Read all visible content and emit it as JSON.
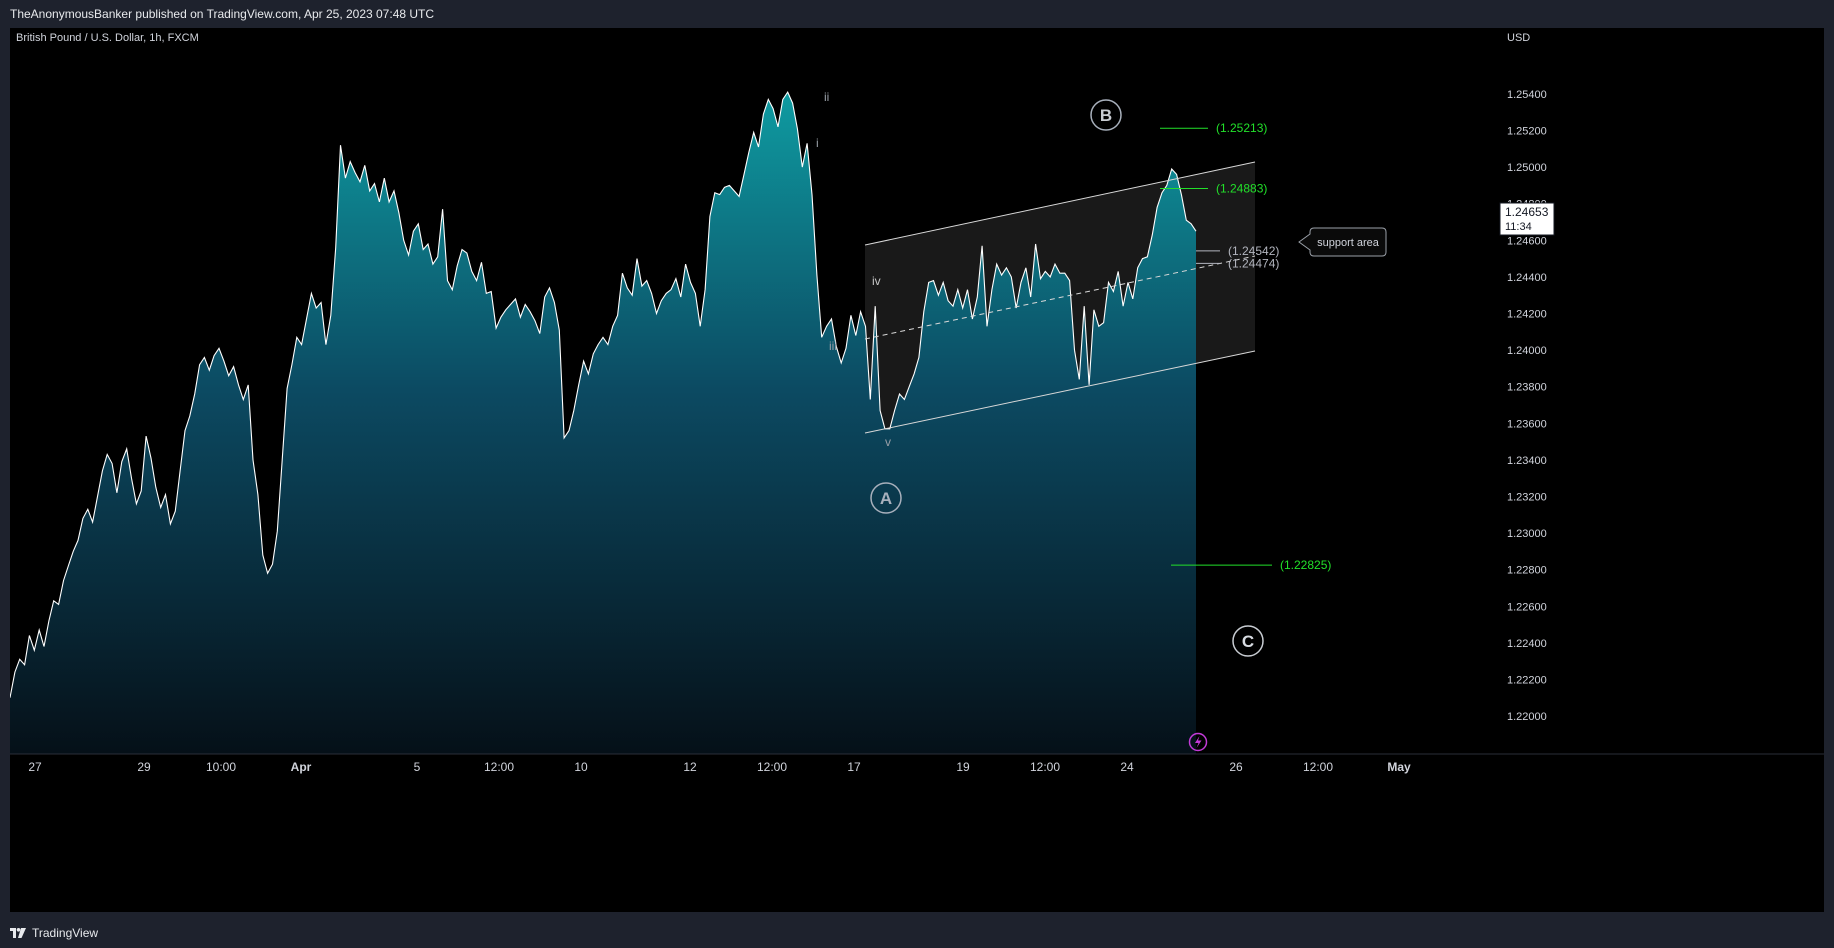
{
  "header": {
    "publisher_line": "TheAnonymousBanker published on TradingView.com, Apr 25, 2023 07:48 UTC"
  },
  "footer": {
    "brand": "TradingView"
  },
  "icons": {
    "brand_logo": "tradingview-logo-icon",
    "lightning": "lightning-icon"
  },
  "colors": {
    "background": "#000000",
    "line": "#ffffff",
    "area_top": "#0e9ba1",
    "area_bottom": "#051018",
    "target_green": "#22e02a",
    "level_gray": "#b2b5be",
    "channel_fill": "#1c1c1c",
    "lightning": "#c23ad7"
  },
  "chart_data": {
    "type": "area",
    "title": "British Pound / U.S. Dollar, 1h, FXCM",
    "currency_label": "USD",
    "x_tick_labels": [
      "27",
      "29",
      "10:00",
      "Apr",
      "5",
      "12:00",
      "10",
      "12",
      "12:00",
      "17",
      "19",
      "12:00",
      "24",
      "26",
      "12:00",
      "May"
    ],
    "y_tick_labels": [
      "1.25400",
      "1.25200",
      "1.25000",
      "1.24800",
      "1.24600",
      "1.24400",
      "1.24200",
      "1.24000",
      "1.23800",
      "1.23600",
      "1.23400",
      "1.23200",
      "1.23000",
      "1.22800",
      "1.22600",
      "1.22400",
      "1.22200",
      "1.22000"
    ],
    "ylim": [
      1.2188,
      1.2558
    ],
    "grid": false,
    "current_price": "1.24653",
    "countdown": "11:34",
    "series": [
      {
        "values": [
          1.221,
          1.2224,
          1.2231,
          1.2228,
          1.2244,
          1.2236,
          1.2247,
          1.2238,
          1.2252,
          1.2263,
          1.2261,
          1.2274,
          1.2282,
          1.229,
          1.2296,
          1.2308,
          1.2313,
          1.2306,
          1.232,
          1.2334,
          1.2343,
          1.2338,
          1.2322,
          1.2339,
          1.2346,
          1.233,
          1.2316,
          1.2323,
          1.2353,
          1.2341,
          1.2325,
          1.2314,
          1.2321,
          1.2305,
          1.2312,
          1.2334,
          1.2356,
          1.2364,
          1.2376,
          1.2392,
          1.2396,
          1.2389,
          1.2397,
          1.2401,
          1.2394,
          1.2386,
          1.2391,
          1.2381,
          1.2373,
          1.2381,
          1.234,
          1.2321,
          1.2288,
          1.2278,
          1.2283,
          1.2301,
          1.234,
          1.2379,
          1.2392,
          1.2407,
          1.2403,
          1.2417,
          1.2431,
          1.2423,
          1.2426,
          1.2403,
          1.2419,
          1.2456,
          1.2512,
          1.2494,
          1.2503,
          1.2497,
          1.2492,
          1.2501,
          1.2487,
          1.2491,
          1.2481,
          1.2494,
          1.2481,
          1.2487,
          1.2475,
          1.246,
          1.2452,
          1.2465,
          1.2469,
          1.2455,
          1.2458,
          1.2447,
          1.2451,
          1.2477,
          1.2438,
          1.2433,
          1.2446,
          1.2455,
          1.2453,
          1.2443,
          1.2438,
          1.2448,
          1.2431,
          1.2432,
          1.2412,
          1.2418,
          1.2422,
          1.2425,
          1.2428,
          1.2418,
          1.2425,
          1.2421,
          1.2416,
          1.2409,
          1.2429,
          1.2434,
          1.2426,
          1.2411,
          1.2352,
          1.2356,
          1.2367,
          1.2381,
          1.2394,
          1.2387,
          1.2398,
          1.2403,
          1.2407,
          1.2403,
          1.2413,
          1.2419,
          1.2442,
          1.2434,
          1.243,
          1.245,
          1.2435,
          1.2438,
          1.2431,
          1.242,
          1.2427,
          1.2431,
          1.2433,
          1.2439,
          1.2429,
          1.2447,
          1.2437,
          1.2431,
          1.2413,
          1.2433,
          1.2473,
          1.2486,
          1.2485,
          1.2489,
          1.249,
          1.2487,
          1.2484,
          1.2496,
          1.2508,
          1.2519,
          1.2511,
          1.2529,
          1.2537,
          1.2532,
          1.2522,
          1.2537,
          1.2541,
          1.2535,
          1.2521,
          1.25,
          1.2513,
          1.2485,
          1.2441,
          1.2407,
          1.2413,
          1.2417,
          1.2402,
          1.2393,
          1.2401,
          1.2419,
          1.2408,
          1.2421,
          1.2413,
          1.2373,
          1.2424,
          1.2367,
          1.2357,
          1.2357,
          1.2367,
          1.2376,
          1.2373,
          1.238,
          1.2387,
          1.2396,
          1.2421,
          1.2437,
          1.2438,
          1.243,
          1.2437,
          1.2427,
          1.2424,
          1.2433,
          1.2423,
          1.2433,
          1.2417,
          1.2429,
          1.2457,
          1.2413,
          1.2433,
          1.2447,
          1.2441,
          1.2445,
          1.244,
          1.2423,
          1.2437,
          1.2445,
          1.2429,
          1.2458,
          1.2439,
          1.2443,
          1.244,
          1.2447,
          1.2442,
          1.2442,
          1.2438,
          1.24,
          1.2384,
          1.2424,
          1.2381,
          1.2422,
          1.2413,
          1.2415,
          1.2437,
          1.2432,
          1.2443,
          1.2424,
          1.2437,
          1.2428,
          1.2445,
          1.245,
          1.2451,
          1.2463,
          1.2478,
          1.2486,
          1.249,
          1.2499,
          1.2496,
          1.2485,
          1.2471,
          1.2469,
          1.2465
        ]
      }
    ],
    "wave_labels": [
      "ii",
      "i",
      "iii",
      "iv",
      "v"
    ],
    "wave_circles": [
      "A",
      "B",
      "C"
    ],
    "levels": [
      {
        "label": "(1.25213)",
        "price": 1.25213,
        "kind": "target"
      },
      {
        "label": "(1.24883)",
        "price": 1.24883,
        "kind": "target"
      },
      {
        "label": "(1.24542)",
        "price": 1.24542,
        "kind": "level"
      },
      {
        "label": "(1.24474)",
        "price": 1.24474,
        "kind": "level"
      },
      {
        "label": "(1.22825)",
        "price": 1.22825,
        "kind": "target"
      }
    ],
    "callout": "support area"
  }
}
